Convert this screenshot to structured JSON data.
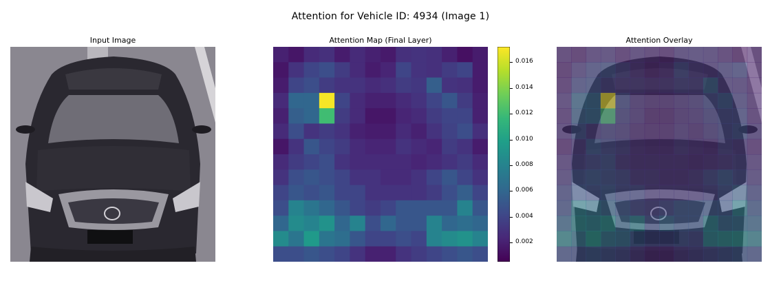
{
  "figure": {
    "title": "Attention for Vehicle ID: 4934 (Image 1)"
  },
  "panels": {
    "input": {
      "title": "Input Image"
    },
    "map": {
      "title": "Attention Map (Final Layer)"
    },
    "overlay": {
      "title": "Attention Overlay"
    }
  },
  "chart_data": {
    "type": "heatmap",
    "title": "Attention Map (Final Layer)",
    "colormap": "viridis",
    "vmin": 0.0005,
    "vmax": 0.0172,
    "grid_size": [
      14,
      14
    ],
    "values": [
      [
        0.002,
        0.0015,
        0.0025,
        0.0028,
        0.0018,
        0.0025,
        0.002,
        0.0017,
        0.0028,
        0.003,
        0.0028,
        0.002,
        0.0012,
        0.0018
      ],
      [
        0.0015,
        0.003,
        0.004,
        0.0045,
        0.0035,
        0.0025,
        0.0018,
        0.0022,
        0.004,
        0.003,
        0.0028,
        0.0035,
        0.004,
        0.0018
      ],
      [
        0.0018,
        0.004,
        0.0045,
        0.0035,
        0.003,
        0.003,
        0.0025,
        0.0028,
        0.0035,
        0.0032,
        0.0055,
        0.003,
        0.0028,
        0.0018
      ],
      [
        0.0025,
        0.006,
        0.006,
        0.017,
        0.004,
        0.0025,
        0.002,
        0.002,
        0.0025,
        0.003,
        0.004,
        0.005,
        0.0035,
        0.002
      ],
      [
        0.002,
        0.0055,
        0.006,
        0.012,
        0.0035,
        0.0025,
        0.0015,
        0.0015,
        0.0022,
        0.0025,
        0.0035,
        0.004,
        0.004,
        0.002
      ],
      [
        0.0025,
        0.0045,
        0.003,
        0.0035,
        0.003,
        0.002,
        0.0018,
        0.0018,
        0.0025,
        0.002,
        0.003,
        0.0038,
        0.0045,
        0.0028
      ],
      [
        0.0015,
        0.003,
        0.005,
        0.004,
        0.0035,
        0.0025,
        0.0022,
        0.0022,
        0.003,
        0.0025,
        0.0022,
        0.0035,
        0.003,
        0.0018
      ],
      [
        0.0025,
        0.0035,
        0.004,
        0.0045,
        0.003,
        0.0025,
        0.0025,
        0.0025,
        0.0025,
        0.0022,
        0.0025,
        0.003,
        0.0035,
        0.0025
      ],
      [
        0.003,
        0.0045,
        0.005,
        0.0045,
        0.004,
        0.003,
        0.003,
        0.0025,
        0.0025,
        0.003,
        0.004,
        0.005,
        0.004,
        0.003
      ],
      [
        0.004,
        0.005,
        0.0045,
        0.005,
        0.004,
        0.004,
        0.003,
        0.003,
        0.003,
        0.003,
        0.0035,
        0.0045,
        0.0055,
        0.004
      ],
      [
        0.0045,
        0.008,
        0.007,
        0.006,
        0.005,
        0.004,
        0.0035,
        0.004,
        0.005,
        0.005,
        0.005,
        0.005,
        0.008,
        0.005
      ],
      [
        0.006,
        0.0085,
        0.008,
        0.009,
        0.006,
        0.008,
        0.0045,
        0.006,
        0.005,
        0.005,
        0.008,
        0.006,
        0.0065,
        0.006
      ],
      [
        0.0085,
        0.007,
        0.0095,
        0.007,
        0.0065,
        0.005,
        0.004,
        0.004,
        0.0045,
        0.004,
        0.008,
        0.0085,
        0.009,
        0.008
      ],
      [
        0.0045,
        0.0045,
        0.005,
        0.0045,
        0.004,
        0.003,
        0.002,
        0.002,
        0.003,
        0.0035,
        0.004,
        0.0045,
        0.005,
        0.0045
      ]
    ],
    "colorbar": {
      "ticks": [
        0.002,
        0.004,
        0.006,
        0.008,
        0.01,
        0.012,
        0.014,
        0.016
      ],
      "tick_labels": [
        "0.002",
        "0.004",
        "0.006",
        "0.008",
        "0.010",
        "0.012",
        "0.014",
        "0.016"
      ]
    }
  },
  "colors": {
    "viridis_stops": [
      "#440154",
      "#482878",
      "#3e4989",
      "#31688e",
      "#26828e",
      "#1f9e89",
      "#35b779",
      "#6ece58",
      "#b5de2b",
      "#fde725"
    ]
  }
}
